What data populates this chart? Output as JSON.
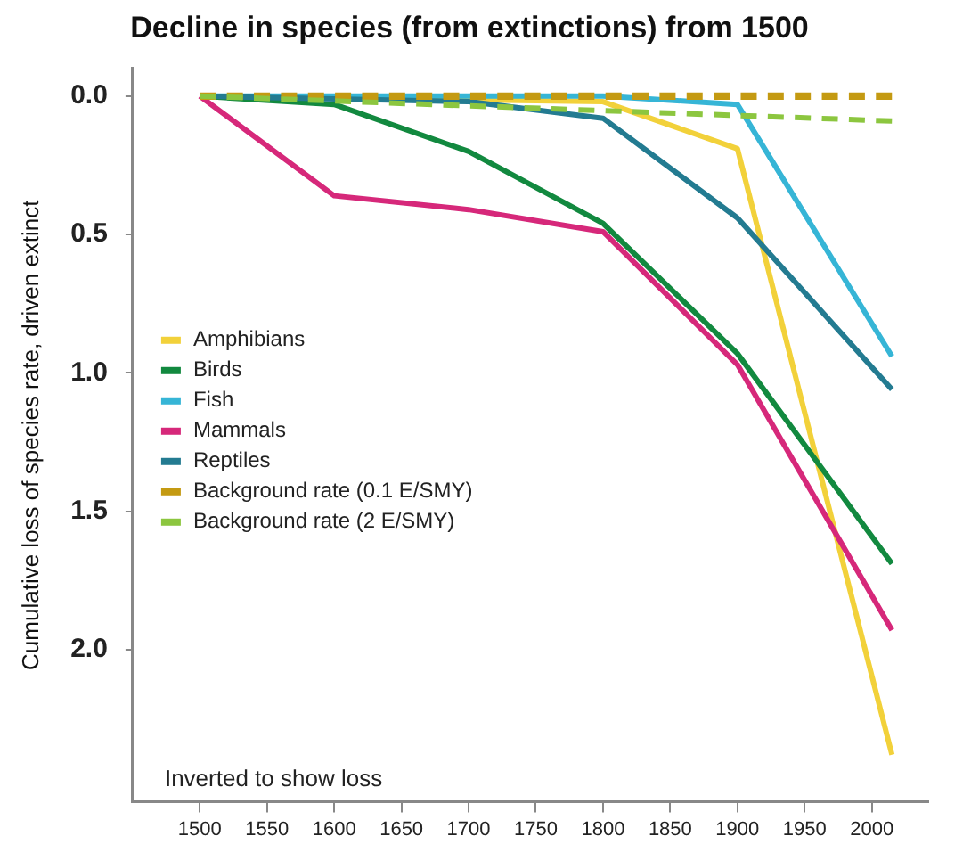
{
  "chart_data": {
    "type": "line",
    "title": "Decline in species (from extinctions) from 1500",
    "ylabel": "Cumulative loss of species rate, driven extinct",
    "xlim": [
      1450,
      2042
    ],
    "xticks": [
      1500,
      1550,
      1600,
      1650,
      1700,
      1750,
      1800,
      1850,
      1900,
      1950,
      2000
    ],
    "ylim": [
      2.55,
      -0.1
    ],
    "yticks": [
      {
        "value": 0,
        "label": "0.0"
      },
      {
        "value": 0.5,
        "label": "0.5"
      },
      {
        "value": 1,
        "label": "1.0"
      },
      {
        "value": 1.5,
        "label": "1.5"
      },
      {
        "value": 2,
        "label": "2.0"
      }
    ],
    "grid": false,
    "legend": "left",
    "marker": "none",
    "annotations": [
      "Inverted to show loss"
    ],
    "series": [
      {
        "name": "Amphibians",
        "color": "#f2d13a",
        "x": [
          1500,
          1800,
          1900,
          2015
        ],
        "values": [
          0,
          0.02,
          0.19,
          2.38
        ]
      },
      {
        "name": "Birds",
        "color": "#12893f",
        "x": [
          1500,
          1600,
          1700,
          1800,
          1900,
          2015
        ],
        "values": [
          0,
          0.03,
          0.2,
          0.46,
          0.93,
          1.69
        ]
      },
      {
        "name": "Fish",
        "color": "#36b5d6",
        "x": [
          1500,
          1800,
          1900,
          2015
        ],
        "values": [
          0,
          0,
          0.03,
          0.94
        ]
      },
      {
        "name": "Mammals",
        "color": "#d6287a",
        "x": [
          1500,
          1600,
          1700,
          1800,
          1900,
          2015
        ],
        "values": [
          0,
          0.36,
          0.41,
          0.49,
          0.97,
          1.93
        ]
      },
      {
        "name": "Reptiles",
        "color": "#237b91",
        "x": [
          1500,
          1600,
          1700,
          1800,
          1900,
          2015
        ],
        "values": [
          0,
          0.01,
          0.02,
          0.08,
          0.44,
          1.06
        ]
      },
      {
        "name": "Background rate (0.1 E/SMY)",
        "color": "#c49a12",
        "line_style": "dashed",
        "x": [
          1500,
          2015
        ],
        "values": [
          0,
          0
        ]
      },
      {
        "name": "Background rate (2 E/SMY)",
        "color": "#8cc63f",
        "line_style": "dashed",
        "x": [
          1500,
          2015
        ],
        "values": [
          0,
          0.09
        ]
      }
    ]
  }
}
